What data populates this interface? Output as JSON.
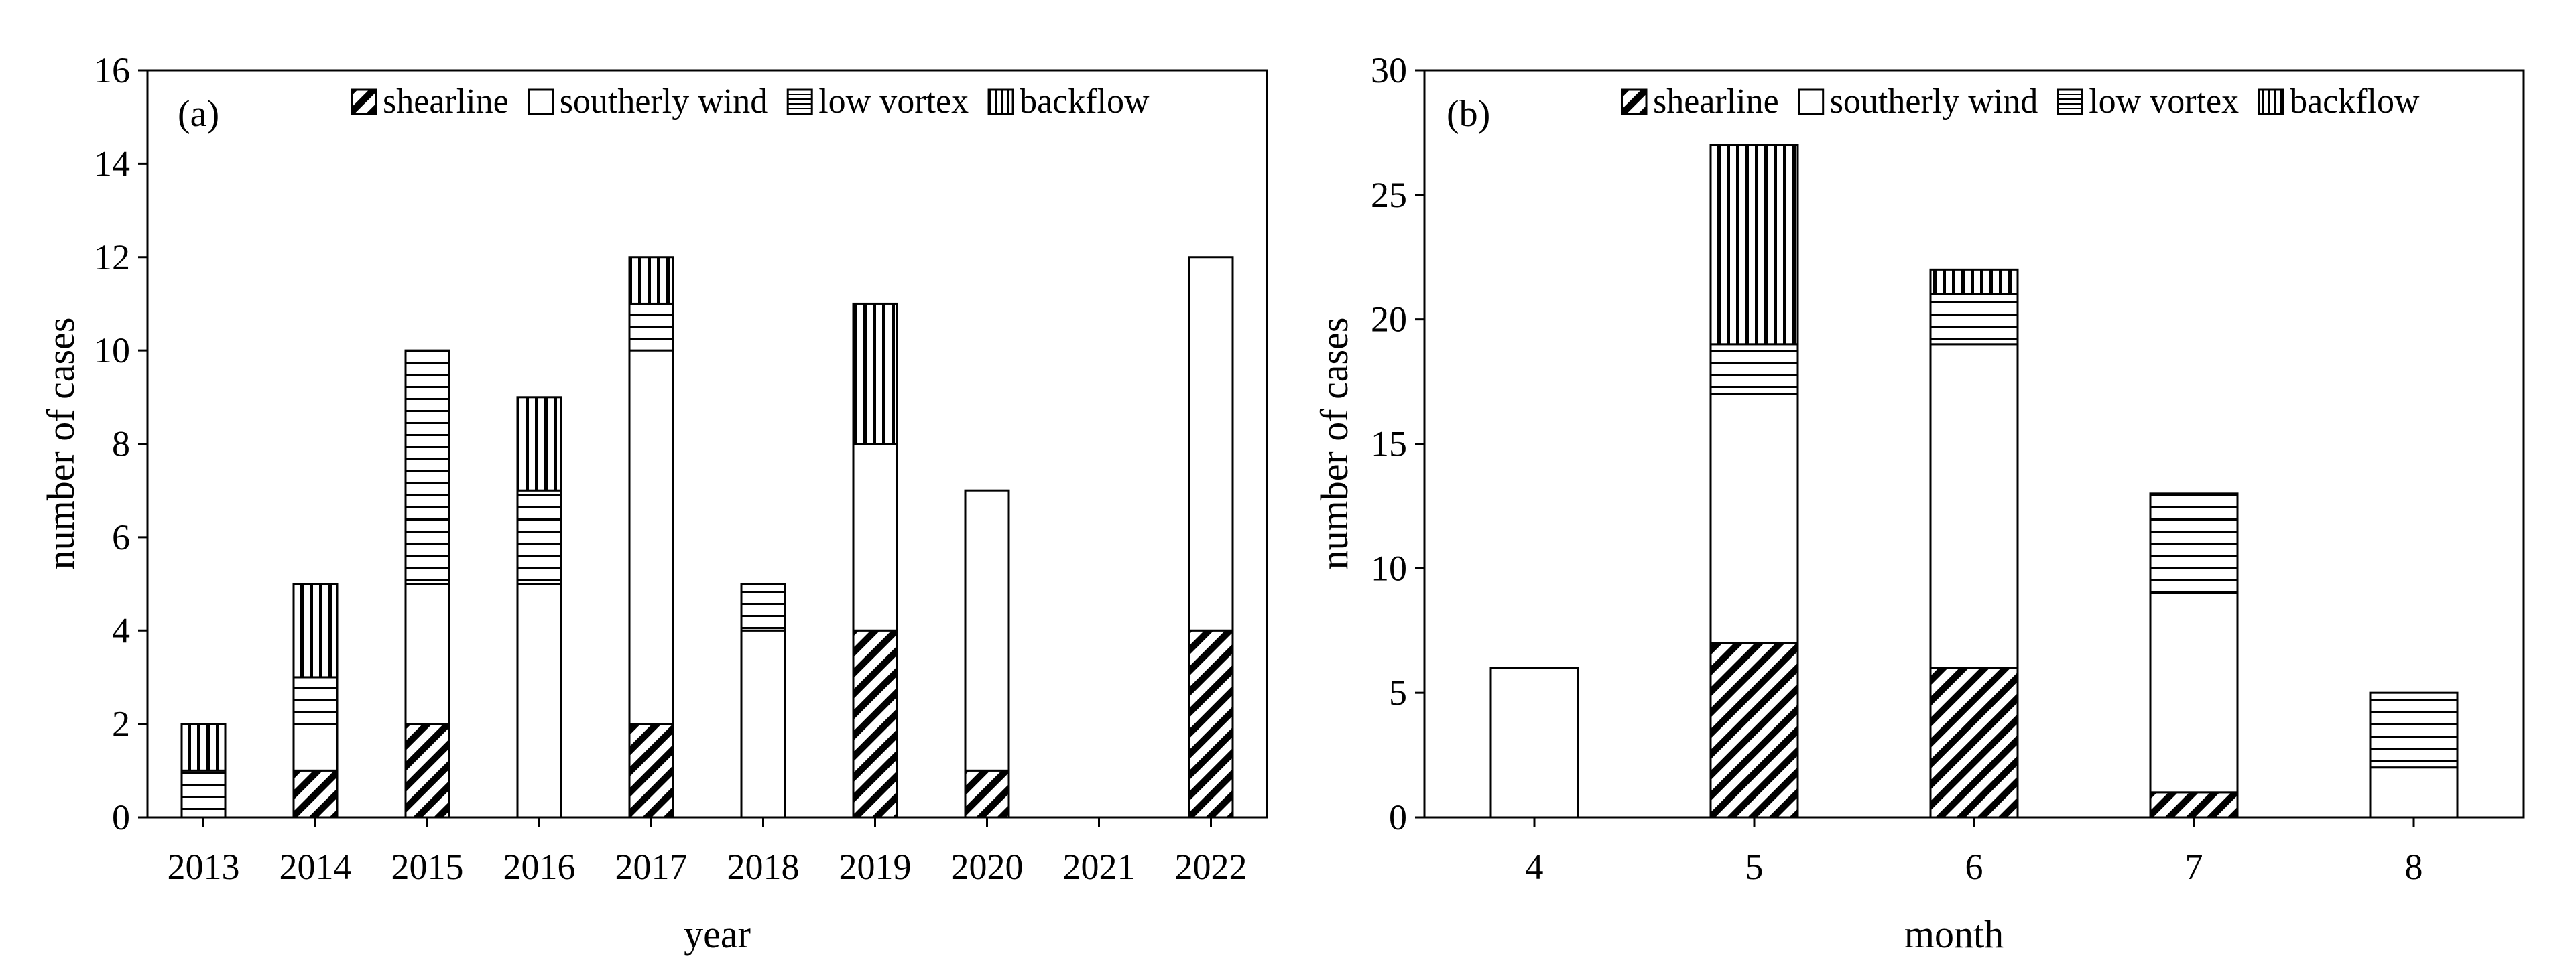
{
  "chart_data": [
    {
      "type": "bar",
      "stacked": true,
      "panel_label": "(a)",
      "xlabel": "year",
      "ylabel": "number of cases",
      "ylim": [
        0,
        16
      ],
      "yticks": [
        0,
        2,
        4,
        6,
        8,
        10,
        12,
        14,
        16
      ],
      "categories": [
        "2013",
        "2014",
        "2015",
        "2016",
        "2017",
        "2018",
        "2019",
        "2020",
        "2021",
        "2022"
      ],
      "legend_position": "top-right",
      "grid": false,
      "series": [
        {
          "name": "shearline",
          "pattern": "diagonal",
          "values": [
            0,
            1,
            2,
            0,
            2,
            0,
            4,
            1,
            0,
            4
          ]
        },
        {
          "name": "southerly wind",
          "pattern": "blank",
          "values": [
            0,
            1,
            3,
            5,
            8,
            4,
            4,
            6,
            0,
            8
          ]
        },
        {
          "name": "low vortex",
          "pattern": "horizontal",
          "values": [
            1,
            1,
            5,
            2,
            1,
            1,
            0,
            0,
            0,
            0
          ]
        },
        {
          "name": "backflow",
          "pattern": "vertical",
          "values": [
            1,
            2,
            0,
            2,
            1,
            0,
            3,
            0,
            0,
            0
          ]
        }
      ]
    },
    {
      "type": "bar",
      "stacked": true,
      "panel_label": "(b)",
      "xlabel": "month",
      "ylabel": "number of cases",
      "ylim": [
        0,
        30
      ],
      "yticks": [
        0,
        5,
        10,
        15,
        20,
        25,
        30
      ],
      "categories": [
        "4",
        "5",
        "6",
        "7",
        "8"
      ],
      "legend_position": "top-right",
      "grid": false,
      "series": [
        {
          "name": "shearline",
          "pattern": "diagonal",
          "values": [
            0,
            7,
            6,
            1,
            0
          ]
        },
        {
          "name": "southerly wind",
          "pattern": "blank",
          "values": [
            6,
            10,
            13,
            8,
            2
          ]
        },
        {
          "name": "low vortex",
          "pattern": "horizontal",
          "values": [
            0,
            2,
            2,
            4,
            3
          ]
        },
        {
          "name": "backflow",
          "pattern": "vertical",
          "values": [
            0,
            8,
            1,
            0,
            0
          ]
        }
      ]
    }
  ]
}
